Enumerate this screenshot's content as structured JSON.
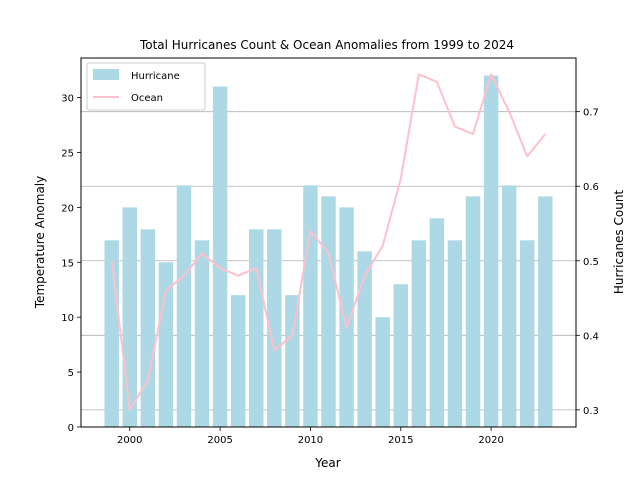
{
  "chart_data": {
    "type": "bar",
    "title": "Total Hurricanes Count & Ocean Anomalies from 1999 to 2024",
    "xlabel": "Year",
    "ylabel_left": "Temperature Anomaly",
    "ylabel_right": "Hurricanes Count",
    "x": [
      1999,
      2000,
      2001,
      2002,
      2003,
      2004,
      2005,
      2006,
      2007,
      2008,
      2009,
      2010,
      2011,
      2012,
      2013,
      2014,
      2015,
      2016,
      2017,
      2018,
      2019,
      2020,
      2021,
      2022,
      2023
    ],
    "xlim": [
      1997.3,
      2024.7
    ],
    "xticks": [
      2000,
      2005,
      2010,
      2015,
      2020
    ],
    "series": [
      {
        "name": "Hurricane",
        "type": "bar",
        "axis": "left",
        "color": "#add8e6",
        "values": [
          17,
          20,
          18,
          15,
          22,
          17,
          31,
          12,
          18,
          18,
          12,
          22,
          21,
          20,
          16,
          10,
          13,
          17,
          19,
          17,
          21,
          32,
          22,
          17,
          21
        ]
      },
      {
        "name": "Ocean",
        "type": "line",
        "axis": "right",
        "color": "#ffc0cb",
        "values": [
          0.5,
          0.3,
          0.34,
          0.46,
          0.48,
          0.51,
          0.49,
          0.48,
          0.49,
          0.38,
          0.4,
          0.54,
          0.51,
          0.41,
          0.48,
          0.52,
          0.61,
          0.75,
          0.74,
          0.68,
          0.67,
          0.75,
          0.7,
          0.64,
          0.67
        ]
      }
    ],
    "ylim_left": [
      0,
      33.6
    ],
    "yticks_left": [
      0,
      5,
      10,
      15,
      20,
      25,
      30
    ],
    "ylim_right": [
      0.277,
      0.772
    ],
    "yticks_right": [
      0.3,
      0.4,
      0.5,
      0.6,
      0.7
    ],
    "grid": "horizontal on right axis",
    "legend": "top-left"
  }
}
